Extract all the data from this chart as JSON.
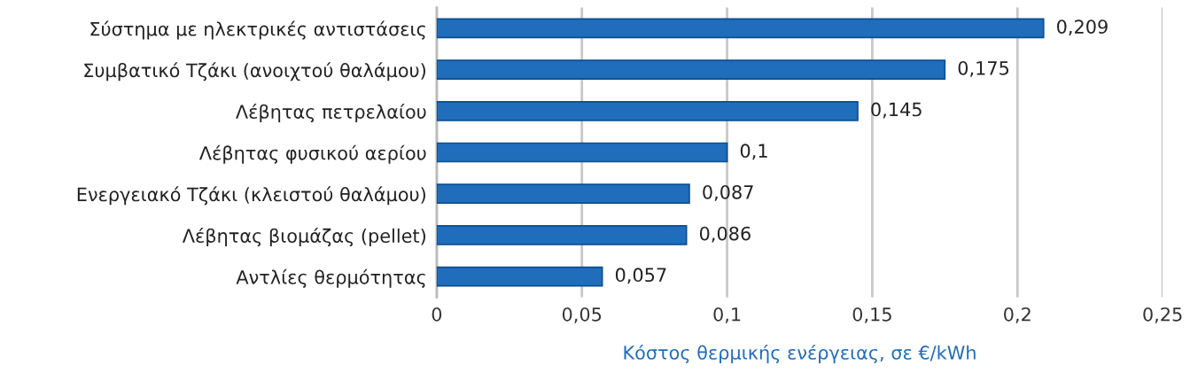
{
  "chart_data": {
    "type": "bar",
    "orientation": "horizontal",
    "xlabel": "Κόστος θερμικής ενέργειας, σε €/kWh",
    "categories": [
      "Σύστημα με ηλεκτρικές αντιστάσεις",
      "Συμβατικό Τζάκι (ανοιχτού θαλάμου)",
      "Λέβητας πετρελαίου",
      "Λέβητας φυσικού αερίου",
      "Ενεργειακό Τζάκι (κλειστού θαλάμου)",
      "Λέβητας βιομάζας (pellet)",
      "Αντλίες θερμότητας"
    ],
    "values": [
      0.209,
      0.175,
      0.145,
      0.1,
      0.087,
      0.086,
      0.057
    ],
    "value_labels": [
      "0,209",
      "0,175",
      "0,145",
      "0,1",
      "0,087",
      "0,086",
      "0,057"
    ],
    "color": "#1f6dbb",
    "xlim": [
      0,
      0.25
    ],
    "xticks": [
      0,
      {
        "value": 0.05,
        "label": "0,05"
      },
      {
        "value": 0.1,
        "label": "0,1"
      },
      {
        "value": 0.15,
        "label": "0,15"
      },
      {
        "value": 0.2,
        "label": "0,2"
      },
      {
        "value": 0.25,
        "label": "0,25"
      }
    ],
    "grid": "x",
    "legend": false
  }
}
